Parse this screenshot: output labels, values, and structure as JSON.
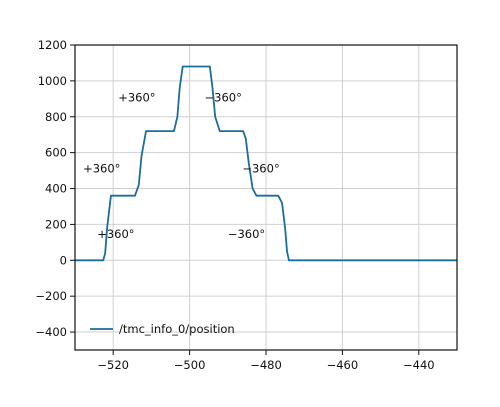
{
  "chart_data": {
    "type": "line",
    "title": "",
    "xlabel": "",
    "ylabel": "",
    "xlim": [
      -530,
      -430
    ],
    "ylim": [
      -500,
      1200
    ],
    "grid": true,
    "legend_position": "lower-left",
    "x_ticks": [
      -520,
      -500,
      -480,
      -460,
      -440
    ],
    "x_tick_labels": [
      "−520",
      "−500",
      "−480",
      "−460",
      "−440"
    ],
    "y_ticks": [
      -400,
      -200,
      0,
      200,
      400,
      600,
      800,
      1000,
      1200
    ],
    "y_tick_labels": [
      "−400",
      "−200",
      "0",
      "200",
      "400",
      "600",
      "800",
      "1000",
      "1200"
    ],
    "series": [
      {
        "name": "/tmc_info_0/position",
        "color": "#1a6e9a",
        "x": [
          -530,
          -522.6,
          -522.1,
          -521.6,
          -520.6,
          -517.0,
          -514.3,
          -513.3,
          -512.6,
          -511.4,
          -507.1,
          -504.1,
          -503.2,
          -502.6,
          -501.8,
          -495.6,
          -494.7,
          -494.0,
          -493.3,
          -492.1,
          -486.0,
          -485.3,
          -484.5,
          -483.5,
          -482.5,
          -476.8,
          -475.8,
          -475.0,
          -474.5,
          -474.0,
          -430
        ],
        "y": [
          0,
          0,
          40,
          180,
          360,
          360,
          360,
          420,
          580,
          720,
          720,
          720,
          800,
          960,
          1080,
          1080,
          1080,
          960,
          800,
          720,
          720,
          680,
          540,
          400,
          360,
          360,
          320,
          180,
          50,
          0,
          0
        ]
      }
    ],
    "annotations": [
      {
        "text": "+360°",
        "x": -519.3,
        "y": 125
      },
      {
        "text": "+360°",
        "x": -523.0,
        "y": 490
      },
      {
        "text": "+360°",
        "x": -513.8,
        "y": 885
      },
      {
        "text": "−360°",
        "x": -491.2,
        "y": 885
      },
      {
        "text": "−360°",
        "x": -481.3,
        "y": 490
      },
      {
        "text": "−360°",
        "x": -485.1,
        "y": 125
      }
    ]
  }
}
